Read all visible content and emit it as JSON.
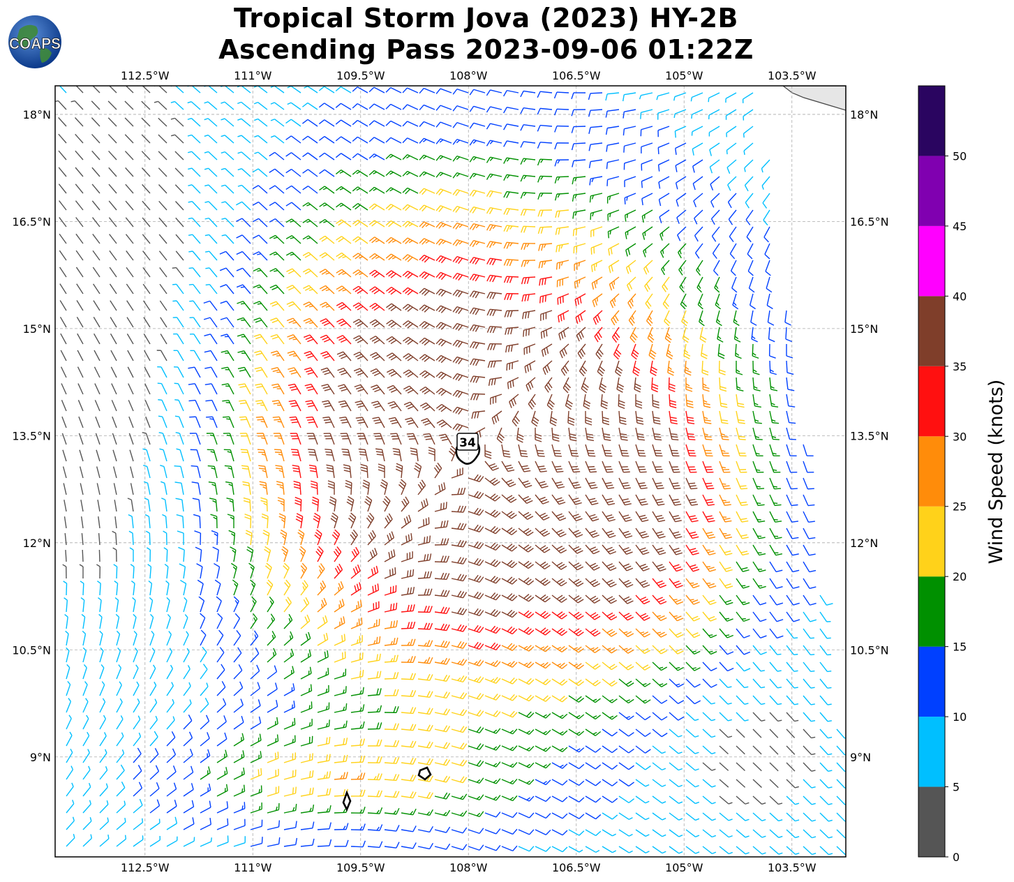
{
  "title": {
    "line1": "Tropical Storm Jova (2023) HY-2B",
    "line2": "Ascending Pass 2023-09-06 01:22Z"
  },
  "logo": {
    "text": "COAPS",
    "icon": "globe-logo-icon"
  },
  "map": {
    "lon_labels": [
      "112.5°W",
      "111°W",
      "109.5°W",
      "108°W",
      "106.5°W",
      "105°W",
      "103.5°W"
    ],
    "lon_values": [
      -112.5,
      -111,
      -109.5,
      -108,
      -106.5,
      -105,
      -103.5
    ],
    "lat_labels": [
      "18°N",
      "16.5°N",
      "15°N",
      "13.5°N",
      "12°N",
      "10.5°N",
      "9°N"
    ],
    "lat_values": [
      18,
      16.5,
      15,
      13.5,
      12,
      10.5,
      9
    ],
    "extent": {
      "lon": [
        -113.75,
        -102.75
      ],
      "lat": [
        7.6,
        18.4
      ]
    },
    "gridlines": "dashed",
    "center_label": "34",
    "center": {
      "lon": -108,
      "lat": 13.3
    }
  },
  "colorbar": {
    "label": "Wind Speed (knots)",
    "ticks": [
      "0",
      "5",
      "10",
      "15",
      "20",
      "25",
      "30",
      "35",
      "40",
      "45",
      "50"
    ],
    "bins": [
      {
        "min": 0,
        "max": 5,
        "color": "#555555"
      },
      {
        "min": 5,
        "max": 10,
        "color": "#00bfff"
      },
      {
        "min": 10,
        "max": 15,
        "color": "#0040ff"
      },
      {
        "min": 15,
        "max": 20,
        "color": "#009000"
      },
      {
        "min": 20,
        "max": 25,
        "color": "#ffd21a"
      },
      {
        "min": 25,
        "max": 30,
        "color": "#ff8c0a"
      },
      {
        "min": 30,
        "max": 35,
        "color": "#ff1010"
      },
      {
        "min": 35,
        "max": 40,
        "color": "#7f3e2a"
      },
      {
        "min": 40,
        "max": 45,
        "color": "#ff00ff"
      },
      {
        "min": 45,
        "max": 50,
        "color": "#8000b0"
      },
      {
        "min": 50,
        "max": 55,
        "color": "#2a0560"
      }
    ]
  }
}
